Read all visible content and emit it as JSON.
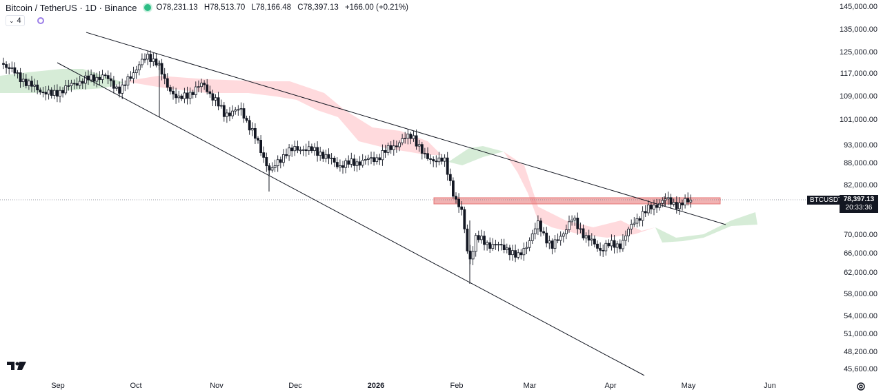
{
  "header": {
    "symbol": "Bitcoin / TetherUS · 1D · Binance",
    "open": "O78,231.13",
    "high": "H78,513.70",
    "low": "L78,166.48",
    "close": "C78,397.13",
    "change": "+166.00 (+0.21%)",
    "indicator_count": "4"
  },
  "price_axis": [
    "145,000.00",
    "135,000.00",
    "125,000.00",
    "117,000.00",
    "109,000.00",
    "101,000.00",
    "93,000.00",
    "88,000.00",
    "82,000.00",
    "70,000.00",
    "66,000.00",
    "62,000.00",
    "58,000.00",
    "54,000.00",
    "51,000.00",
    "48,200.00",
    "45,600.00"
  ],
  "time_axis": [
    "Sep",
    "Oct",
    "Nov",
    "Dec",
    "2026",
    "Feb",
    "Mar",
    "Apr",
    "May",
    "Jun"
  ],
  "last_price": {
    "symbol": "BTCUSDT",
    "price": "78,397.13",
    "countdown": "20:33:36"
  },
  "colors": {
    "up": "#26a69a",
    "down": "#ef5350",
    "candle_body": "#131722",
    "cloud_bull": "#c8e6c9",
    "cloud_bear": "#ffcdd2",
    "zone": "#e57373"
  }
}
